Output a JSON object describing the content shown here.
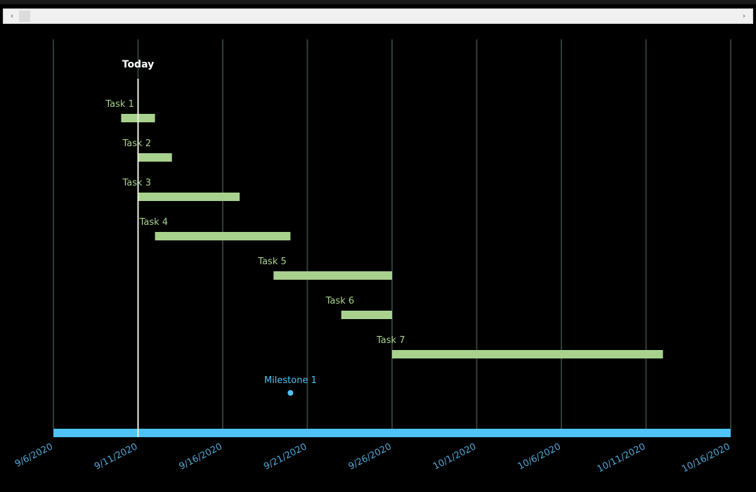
{
  "window": {
    "scroll_left_glyph": "‹",
    "scroll_right_glyph": "›"
  },
  "chart_data": {
    "type": "gantt",
    "x_axis": {
      "type": "date",
      "min": "2020-09-06",
      "max": "2020-10-16",
      "tick_labels": [
        "9/6/2020",
        "9/11/2020",
        "9/16/2020",
        "9/21/2020",
        "9/26/2020",
        "10/1/2020",
        "10/6/2020",
        "10/11/2020",
        "10/16/2020"
      ]
    },
    "today": {
      "label": "Today",
      "date": "2020-09-11"
    },
    "tasks": [
      {
        "label": "Task 1",
        "start": "2020-09-10",
        "end": "2020-09-12"
      },
      {
        "label": "Task 2",
        "start": "2020-09-11",
        "end": "2020-09-13"
      },
      {
        "label": "Task 3",
        "start": "2020-09-11",
        "end": "2020-09-17"
      },
      {
        "label": "Task 4",
        "start": "2020-09-12",
        "end": "2020-09-20"
      },
      {
        "label": "Task 5",
        "start": "2020-09-19",
        "end": "2020-09-26"
      },
      {
        "label": "Task 6",
        "start": "2020-09-23",
        "end": "2020-09-26"
      },
      {
        "label": "Task 7",
        "start": "2020-09-26",
        "end": "2020-10-12"
      }
    ],
    "milestones": [
      {
        "label": "Milestone 1",
        "date": "2020-09-20"
      }
    ],
    "grid": true,
    "colors": {
      "background": "#000000",
      "task_bar": "#a9d18e",
      "task_label": "#a9d18e",
      "milestone": "#4fc3f7",
      "axis_band": "#4fc3f7",
      "tick_label": "#4fa8d8",
      "gridline": "#2f3f37",
      "today_line": "#f2efe0",
      "today_label": "#ffffff"
    }
  }
}
